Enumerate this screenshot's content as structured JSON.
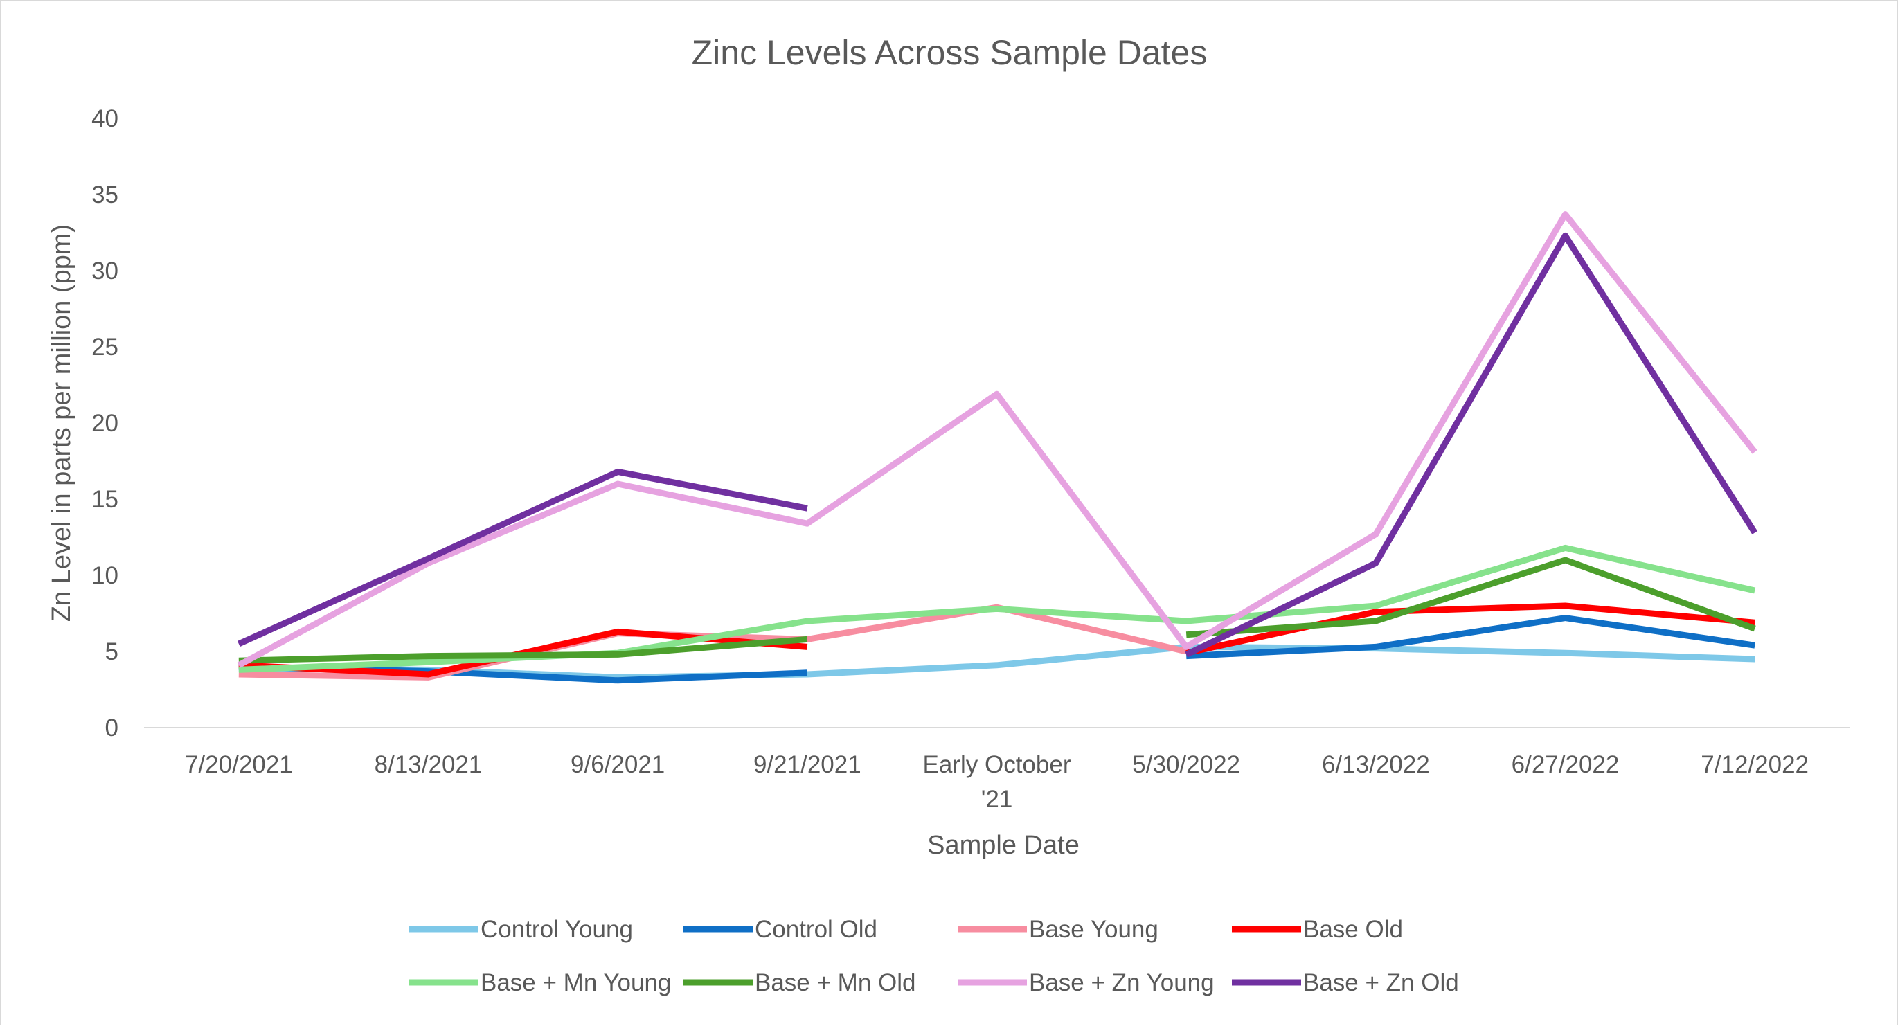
{
  "chart_data": {
    "type": "line",
    "title": "Zinc Levels Across Sample Dates",
    "xlabel": "Sample Date",
    "ylabel": "Zn Level in parts per million (ppm)",
    "ylim": [
      0,
      40
    ],
    "yticks": [
      0,
      5,
      10,
      15,
      20,
      25,
      30,
      35,
      40
    ],
    "grid": "none",
    "legend_position": "bottom",
    "categories": [
      "7/20/2021",
      "8/13/2021",
      "9/6/2021",
      "9/21/2021",
      "Early October '21",
      "5/30/2022",
      "6/13/2022",
      "6/27/2022",
      "7/12/2022"
    ],
    "series": [
      {
        "name": "Control Young",
        "color": "#7ec8e8",
        "values": [
          3.9,
          3.8,
          3.3,
          3.5,
          4.1,
          5.3,
          5.2,
          4.9,
          4.5
        ]
      },
      {
        "name": "Control Old",
        "color": "#0f6fc6",
        "values": [
          4.0,
          3.7,
          3.1,
          3.6,
          null,
          4.7,
          5.3,
          7.2,
          5.4
        ]
      },
      {
        "name": "Base Young",
        "color": "#f78da0",
        "values": [
          3.5,
          3.3,
          6.2,
          5.8,
          7.9,
          5.0,
          null,
          null,
          null
        ]
      },
      {
        "name": "Base Old",
        "color": "#ff0000",
        "values": [
          4.1,
          3.5,
          6.3,
          5.3,
          null,
          4.9,
          7.6,
          8.0,
          6.9
        ]
      },
      {
        "name": "Base + Mn Young",
        "color": "#86e28c",
        "values": [
          3.8,
          4.3,
          4.9,
          7.0,
          7.8,
          7.0,
          8.0,
          11.8,
          9.0
        ]
      },
      {
        "name": "Base + Mn Old",
        "color": "#4c9f2c",
        "values": [
          4.4,
          4.7,
          4.8,
          5.8,
          null,
          6.1,
          7.0,
          11.0,
          6.5
        ]
      },
      {
        "name": "Base + Zn Young",
        "color": "#e6a2e0",
        "values": [
          4.1,
          10.8,
          16.0,
          13.4,
          21.9,
          5.3,
          12.7,
          33.7,
          18.1
        ]
      },
      {
        "name": "Base + Zn Old",
        "color": "#7030a0",
        "values": [
          5.5,
          11.1,
          16.8,
          14.4,
          null,
          4.8,
          10.8,
          32.3,
          12.8
        ]
      }
    ]
  }
}
